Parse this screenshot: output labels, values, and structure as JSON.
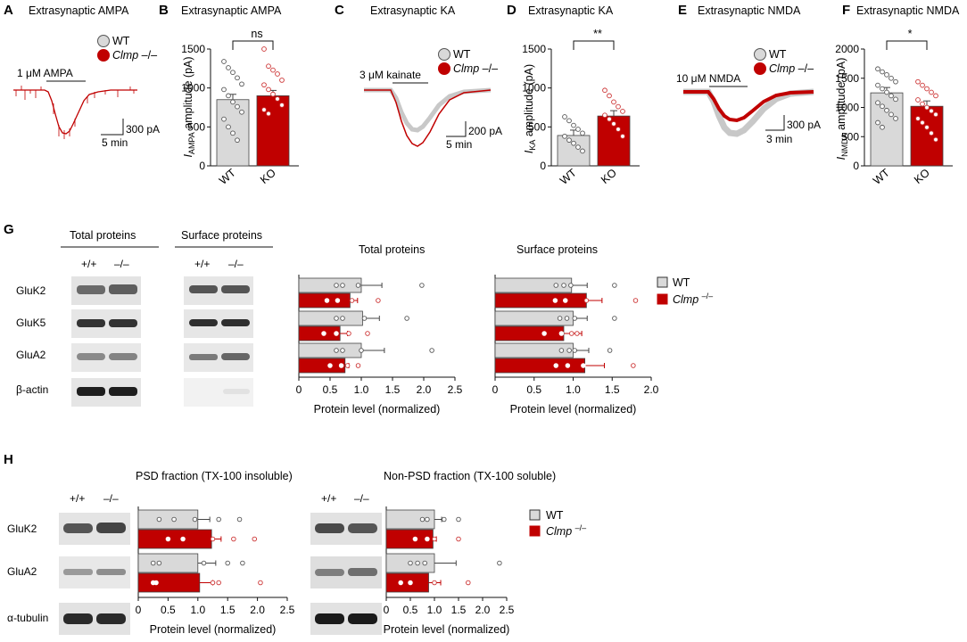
{
  "colors": {
    "wt_fill": "#d9d9d9",
    "ko_fill": "#c00000",
    "wt_dot": "#555555",
    "ko_dot": "#cc3333",
    "axis": "#111111"
  },
  "panels": [
    {
      "id": "A",
      "title": "Extrasynaptic AMPA",
      "drug": "1 μM AMPA",
      "scale_y": "300 pA",
      "scale_x": "5 min"
    },
    {
      "id": "B",
      "title": "Extrasynaptic AMPA",
      "ylabel_main": "I",
      "ylabel_sub": "AMPA",
      "ylabel_rest": " amplitude (pA)",
      "ticks": [
        "0",
        "500",
        "1000",
        "1500"
      ],
      "significance": "ns"
    },
    {
      "id": "C",
      "title": "Extrasynaptic KA",
      "drug": "3 μM kainate",
      "scale_y": "200 pA",
      "scale_x": "5 min"
    },
    {
      "id": "D",
      "title": "Extrasynaptic KA",
      "ylabel_main": "I",
      "ylabel_sub": "KA",
      "ylabel_rest": " amplitude (pA)",
      "ticks": [
        "0",
        "500",
        "1000",
        "1500"
      ],
      "significance": "**"
    },
    {
      "id": "E",
      "title": "Extrasynaptic NMDA",
      "drug": "10 μM NMDA",
      "scale_y": "300 pA",
      "scale_x": "3 min"
    },
    {
      "id": "F",
      "title": "Extrasynaptic NMDA",
      "ylabel_main": "I",
      "ylabel_sub": "NMDA",
      "ylabel_rest": " amplitude (pA)",
      "ticks": [
        "0",
        "500",
        "1000",
        "1500",
        "2000"
      ],
      "significance": "*"
    },
    {
      "id": "G"
    },
    {
      "id": "H"
    }
  ],
  "legend": {
    "wt": "WT",
    "ko_main": "Clmp",
    "ko_sup": "–/–"
  },
  "groups": {
    "wt": "WT",
    "ko": "KO"
  },
  "genotypes": {
    "wt": "+/+",
    "ko": "–/–"
  },
  "blots_g": {
    "total_title": "Total proteins",
    "surface_title": "Surface proteins",
    "rows": [
      "GluK2",
      "GluK5",
      "GluA2",
      "β-actin"
    ]
  },
  "blots_h": {
    "rows": [
      "GluK2",
      "GluA2",
      "α-tubulin"
    ]
  },
  "hbar_xlabel": "Protein level (normalized)",
  "chart_data": [
    {
      "type": "bar",
      "panel": "B",
      "title": "Extrasynaptic AMPA",
      "categories": [
        "WT",
        "KO"
      ],
      "values": [
        850,
        900
      ],
      "ylabel": "I AMPA amplitude (pA)",
      "ylim": [
        0,
        1500
      ],
      "points": {
        "WT": [
          1340,
          1260,
          1200,
          1130,
          1050,
          980,
          900,
          820,
          760,
          690,
          600,
          500,
          420,
          330
        ],
        "KO": [
          1500,
          1280,
          1230,
          1180,
          1100,
          1040,
          980,
          920,
          860,
          780,
          720,
          670
        ]
      }
    },
    {
      "type": "bar",
      "panel": "D",
      "title": "Extrasynaptic KA",
      "categories": [
        "WT",
        "KO"
      ],
      "values": [
        390,
        640
      ],
      "ylabel": "I KA amplitude (pA)",
      "ylim": [
        0,
        1500
      ],
      "points": {
        "WT": [
          630,
          580,
          520,
          470,
          420,
          380,
          330,
          290,
          240,
          190
        ],
        "KO": [
          970,
          900,
          820,
          760,
          700,
          650,
          600,
          540,
          470,
          380
        ]
      }
    },
    {
      "type": "bar",
      "panel": "F",
      "title": "Extrasynaptic NMDA",
      "categories": [
        "WT",
        "KO"
      ],
      "values": [
        1250,
        1020
      ],
      "ylabel": "I NMDA amplitude (pA)",
      "ylim": [
        0,
        2000
      ],
      "points": {
        "WT": [
          1660,
          1610,
          1560,
          1500,
          1440,
          1380,
          1320,
          1260,
          1200,
          1140,
          1080,
          1020,
          950,
          880,
          810,
          740,
          660
        ],
        "KO": [
          1440,
          1380,
          1320,
          1260,
          1200,
          1130,
          1060,
          1000,
          940,
          880,
          810,
          740,
          660,
          560,
          450
        ]
      }
    },
    {
      "type": "bar",
      "orientation": "horizontal",
      "panel": "G-total",
      "title": "Total proteins",
      "xlabel": "Protein level (normalized)",
      "xlim": [
        0,
        2.5
      ],
      "xticks": [
        "0",
        "0.5",
        "1.0",
        "1.5",
        "2.0",
        "2.5"
      ],
      "categories": [
        "GluK2",
        "GluK5",
        "GluA2"
      ],
      "series": [
        {
          "name": "WT",
          "values": [
            1.0,
            1.02,
            1.0
          ],
          "err": [
            0.33,
            0.27,
            0.37
          ]
        },
        {
          "name": "Clmp –/–",
          "values": [
            0.82,
            0.66,
            0.74
          ],
          "err": [
            0.12,
            0.12,
            0.06
          ]
        }
      ],
      "points": {
        "WT": [
          [
            0.6,
            0.7,
            0.95,
            1.97
          ],
          [
            0.6,
            0.7,
            1.05,
            1.73
          ],
          [
            0.6,
            0.7,
            1.0,
            2.13
          ]
        ],
        "Clmp –/–": [
          [
            0.45,
            0.62,
            0.85,
            1.27
          ],
          [
            0.4,
            0.6,
            0.8,
            1.1
          ],
          [
            0.5,
            0.68,
            0.78,
            0.95
          ]
        ]
      }
    },
    {
      "type": "bar",
      "orientation": "horizontal",
      "panel": "G-surface",
      "title": "Surface proteins",
      "xlabel": "Protein level (normalized)",
      "xlim": [
        0,
        2.0
      ],
      "xticks": [
        "0",
        "0.5",
        "1.0",
        "1.5",
        "2.0"
      ],
      "categories": [
        "GluK2",
        "GluK5",
        "GluA2"
      ],
      "series": [
        {
          "name": "WT",
          "values": [
            0.98,
            1.0,
            1.0
          ],
          "err": [
            0.2,
            0.18,
            0.2
          ]
        },
        {
          "name": "Clmp –/–",
          "values": [
            1.17,
            0.88,
            1.15
          ],
          "err": [
            0.2,
            0.23,
            0.25
          ]
        }
      ],
      "points": {
        "WT": [
          [
            0.78,
            0.88,
            0.97,
            1.53
          ],
          [
            0.83,
            0.92,
            1.02,
            1.53
          ],
          [
            0.85,
            0.95,
            1.02,
            1.47
          ]
        ],
        "Clmp –/–": [
          [
            0.77,
            0.9,
            1.17,
            1.8
          ],
          [
            0.63,
            0.85,
            0.98,
            1.05
          ],
          [
            0.78,
            0.93,
            1.13,
            1.77
          ]
        ]
      }
    },
    {
      "type": "bar",
      "orientation": "horizontal",
      "panel": "H-psd",
      "title": "PSD fraction (TX-100 insoluble)",
      "xlabel": "Protein level (normalized)",
      "xlim": [
        0,
        2.5
      ],
      "xticks": [
        "0",
        "0.5",
        "1.0",
        "1.5",
        "2.0",
        "2.5"
      ],
      "categories": [
        "GluK2",
        "GluA2"
      ],
      "series": [
        {
          "name": "WT",
          "values": [
            1.0,
            1.0
          ],
          "err": [
            0.2,
            0.3
          ]
        },
        {
          "name": "Clmp –/–",
          "values": [
            1.23,
            1.03
          ],
          "err": [
            0.16,
            0.22
          ]
        }
      ],
      "points": {
        "WT": [
          [
            0.35,
            0.6,
            0.95,
            1.35,
            1.7
          ],
          [
            0.25,
            0.35,
            1.1,
            1.5,
            1.75
          ]
        ],
        "Clmp –/–": [
          [
            0.5,
            0.75,
            1.25,
            1.6,
            1.95
          ],
          [
            0.3,
            0.25,
            1.25,
            1.35,
            2.05
          ]
        ]
      }
    },
    {
      "type": "bar",
      "orientation": "horizontal",
      "panel": "H-nonpsd",
      "title": "Non-PSD fraction (TX-100 soluble)",
      "xlabel": "Protein level (normalized)",
      "xlim": [
        0,
        2.5
      ],
      "xticks": [
        "0",
        "0.5",
        "1.0",
        "1.5",
        "2.0",
        "2.5"
      ],
      "categories": [
        "GluK2",
        "GluA2"
      ],
      "series": [
        {
          "name": "WT",
          "values": [
            1.0,
            1.0
          ],
          "err": [
            0.15,
            0.45
          ]
        },
        {
          "name": "Clmp –/–",
          "values": [
            0.97,
            0.88
          ],
          "err": [
            0.07,
            0.25
          ]
        }
      ],
      "points": {
        "WT": [
          [
            0.75,
            0.85,
            1.2,
            1.5
          ],
          [
            0.5,
            0.65,
            0.8,
            2.35
          ]
        ],
        "Clmp –/–": [
          [
            0.6,
            0.85,
            1.0,
            1.5
          ],
          [
            0.3,
            0.5,
            1.0,
            1.7
          ]
        ]
      }
    }
  ]
}
